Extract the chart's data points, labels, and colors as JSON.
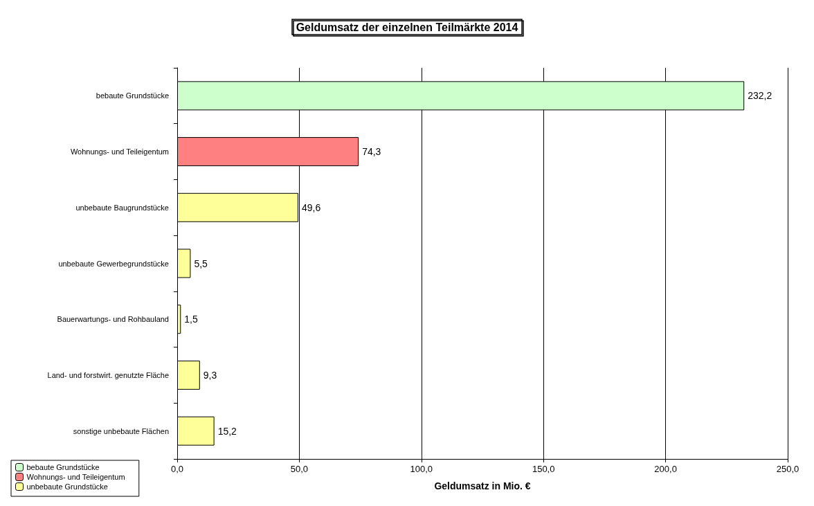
{
  "chart_data": {
    "type": "bar",
    "title": "Geldumsatz der einzelnen Teilmärkte 2014",
    "xlabel": "Geldumsatz in Mio. €",
    "orientation": "horizontal",
    "stacked": true,
    "categories": [
      "bebaute Grundstücke",
      "Wohnungs- und Teileigentum",
      "unbebaute Baugrundstücke",
      "unbebaute Gewerbegrundstücke",
      "Bauerwartungs- und Rohbauland",
      "Land- und forstwirt. genutzte Fläche",
      "sonstige unbebaute Flächen"
    ],
    "series": [
      {
        "name": "bebaute Grundstücke",
        "color": "#ccffcc",
        "values": [
          232.2,
          null,
          null,
          null,
          null,
          null,
          null
        ],
        "value_labels": [
          "232,2",
          null,
          null,
          null,
          null,
          null,
          null
        ]
      },
      {
        "name": "Wohnungs- und Teileigentum",
        "color": "#ff8080",
        "values": [
          null,
          74.3,
          null,
          null,
          null,
          null,
          null
        ],
        "value_labels": [
          null,
          "74,3",
          null,
          null,
          null,
          null,
          null
        ]
      },
      {
        "name": "unbebaute Grundstücke",
        "color": "#ffff99",
        "values": [
          null,
          null,
          49.6,
          5.5,
          1.5,
          9.3,
          15.2
        ],
        "value_labels": [
          null,
          null,
          "49,6",
          "5,5",
          "1,5",
          "9,3",
          "15,2"
        ]
      }
    ],
    "xlim": [
      0,
      250
    ],
    "xticks": [
      {
        "value": 0,
        "label": "0,0"
      },
      {
        "value": 50,
        "label": "50,0"
      },
      {
        "value": 100,
        "label": "100,0"
      },
      {
        "value": 150,
        "label": "150,0"
      },
      {
        "value": 200,
        "label": "200,0"
      },
      {
        "value": 250,
        "label": "250,0"
      }
    ],
    "grid": "x",
    "legend": "bottom left"
  }
}
